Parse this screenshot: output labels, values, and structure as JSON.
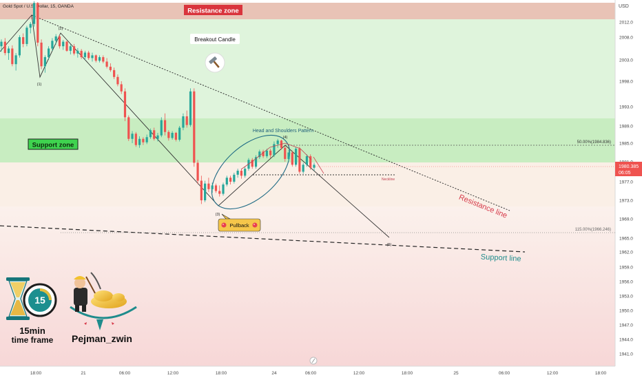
{
  "header": {
    "symbol": "Gold Spot / U.S. Dollar, 15, OANDA",
    "currency": "USD"
  },
  "colors": {
    "up": "#26a69a",
    "down": "#ef5350",
    "resistance_fill": "#e9c3b6",
    "green_fill": "#dcf3d9",
    "support_fill": "#c8edc1",
    "low_fill": "#f9e6e6",
    "teal": "#1f8c8c",
    "resistance_text": "#d63a4a"
  },
  "chart_data": {
    "type": "candlestick",
    "title": "Gold Spot / U.S. Dollar, 15, OANDA",
    "y_axis_label": "USD",
    "y_ticks": [
      2012.0,
      2008.0,
      2003.0,
      1998.0,
      1993.0,
      1989.0,
      1985.0,
      1981.0,
      1977.0,
      1973.0,
      1969.0,
      1965.0,
      1962.0,
      1959.0,
      1956.0,
      1953.0,
      1950.0,
      1947.0,
      1944.0,
      1941.0
    ],
    "x_ticks": [
      "18:00",
      "21",
      "06:00",
      "12:00",
      "18:00",
      "24",
      "06:00",
      "12:00",
      "18:00",
      "25",
      "06:00",
      "12:00",
      "18:00"
    ],
    "current_price": "1980.385",
    "countdown": "06:05",
    "zones": [
      {
        "label": "Resistance zone",
        "from": 2012.5,
        "to": 2016.0
      },
      {
        "label": "Support zone",
        "from": 1980.8,
        "to": 1990.0
      }
    ],
    "fib_levels": [
      {
        "label": "50.00%(1984.836)",
        "value": 1984.836
      },
      {
        "label": "115.00%(1966.246)",
        "value": 1966.246
      }
    ],
    "neckline": {
      "label": "Neckline",
      "value": 1978.8
    },
    "trendlines": [
      {
        "label": "Resistance line"
      },
      {
        "label": "Support line"
      }
    ],
    "pattern_label": "Head and Shoulders Pattern",
    "wave_points": [
      {
        "label": "(1)",
        "time": "19:30",
        "value": 2000.0
      },
      {
        "label": "(2)",
        "time": "22:45",
        "value": 2008.6
      },
      {
        "label": "(3)",
        "time": "17:45",
        "value": 1972.0
      },
      {
        "label": "(4)",
        "time": "04:30",
        "value": 1985.6
      },
      {
        "label": "(5)",
        "time": "14:00",
        "value": 1964.2
      }
    ],
    "candles": [
      [
        2006.0,
        2007.5,
        2004.8,
        2007.0
      ],
      [
        2007.0,
        2007.8,
        2004.0,
        2004.5
      ],
      [
        2004.5,
        2006.0,
        2003.0,
        2005.5
      ],
      [
        2005.5,
        2006.2,
        2001.5,
        2002.0
      ],
      [
        2002.0,
        2004.5,
        2000.5,
        2004.0
      ],
      [
        2004.0,
        2008.5,
        2003.5,
        2008.0
      ],
      [
        2008.0,
        2009.0,
        2005.8,
        2006.5
      ],
      [
        2006.5,
        2011.0,
        2006.0,
        2010.5
      ],
      [
        2010.5,
        2012.0,
        2009.0,
        2011.5
      ],
      [
        2011.5,
        2014.2,
        2010.8,
        2013.8
      ],
      [
        2013.8,
        2014.0,
        2006.0,
        2006.8
      ],
      [
        2006.8,
        2007.5,
        2000.8,
        2001.5
      ],
      [
        2001.5,
        2004.0,
        2000.0,
        2003.6
      ],
      [
        2003.6,
        2006.0,
        2003.0,
        2005.5
      ],
      [
        2005.5,
        2007.8,
        2005.0,
        2007.2
      ],
      [
        2007.2,
        2008.8,
        2006.4,
        2008.2
      ],
      [
        2008.2,
        2008.6,
        2005.5,
        2006.0
      ],
      [
        2006.0,
        2007.4,
        2005.2,
        2007.0
      ],
      [
        2007.0,
        2007.2,
        2004.8,
        2005.0
      ],
      [
        2005.0,
        2006.4,
        2004.2,
        2006.0
      ],
      [
        2006.0,
        2006.5,
        2004.0,
        2004.4
      ],
      [
        2004.4,
        2005.6,
        2003.5,
        2005.0
      ],
      [
        2005.0,
        2005.4,
        2003.2,
        2003.6
      ],
      [
        2003.6,
        2005.0,
        2003.0,
        2004.6
      ],
      [
        2004.6,
        2005.0,
        2003.0,
        2003.4
      ],
      [
        2003.4,
        2004.6,
        2002.6,
        2004.0
      ],
      [
        2004.0,
        2004.2,
        2002.4,
        2002.8
      ],
      [
        2002.8,
        2004.0,
        2002.4,
        2003.6
      ],
      [
        2003.6,
        2004.0,
        2002.2,
        2002.6
      ],
      [
        2002.6,
        2003.4,
        2001.0,
        2001.4
      ],
      [
        2001.4,
        2002.2,
        2000.2,
        2000.6
      ],
      [
        2000.6,
        2001.2,
        1998.5,
        1999.0
      ],
      [
        1999.0,
        1999.6,
        1997.0,
        1997.4
      ],
      [
        1997.4,
        1998.0,
        1995.5,
        1996.0
      ],
      [
        1996.0,
        1996.6,
        1990.0,
        1990.8
      ],
      [
        1990.8,
        1991.2,
        1985.5,
        1986.0
      ],
      [
        1986.0,
        1987.8,
        1985.0,
        1987.2
      ],
      [
        1987.2,
        1987.6,
        1984.2,
        1984.6
      ],
      [
        1984.6,
        1986.6,
        1984.0,
        1986.0
      ],
      [
        1986.0,
        1986.4,
        1984.6,
        1985.2
      ],
      [
        1985.2,
        1987.0,
        1984.8,
        1986.4
      ],
      [
        1986.4,
        1988.4,
        1986.0,
        1988.0
      ],
      [
        1988.0,
        1988.6,
        1985.6,
        1986.0
      ],
      [
        1986.0,
        1987.4,
        1985.4,
        1986.8
      ],
      [
        1986.8,
        1990.8,
        1986.4,
        1990.2
      ],
      [
        1990.2,
        1991.6,
        1986.8,
        1987.6
      ],
      [
        1987.6,
        1988.0,
        1985.6,
        1986.2
      ],
      [
        1986.2,
        1987.8,
        1985.8,
        1987.4
      ],
      [
        1987.4,
        1987.6,
        1985.4,
        1985.8
      ],
      [
        1985.8,
        1989.0,
        1985.4,
        1988.6
      ],
      [
        1988.6,
        1991.6,
        1988.0,
        1991.0
      ],
      [
        1991.0,
        1992.2,
        1988.6,
        1989.2
      ],
      [
        1989.2,
        1996.6,
        1988.8,
        1996.0
      ],
      [
        1996.0,
        1996.6,
        1980.0,
        1980.8
      ],
      [
        1980.8,
        1981.4,
        1976.5,
        1977.2
      ],
      [
        1977.2,
        1978.2,
        1972.2,
        1973.0
      ],
      [
        1973.0,
        1977.2,
        1972.6,
        1976.6
      ],
      [
        1976.6,
        1977.8,
        1974.8,
        1975.4
      ],
      [
        1975.4,
        1976.8,
        1974.6,
        1976.2
      ],
      [
        1976.2,
        1976.6,
        1974.6,
        1975.0
      ],
      [
        1975.0,
        1976.2,
        1973.8,
        1974.4
      ],
      [
        1974.4,
        1976.8,
        1974.0,
        1976.4
      ],
      [
        1976.4,
        1978.2,
        1976.0,
        1977.8
      ],
      [
        1977.8,
        1978.2,
        1976.4,
        1977.0
      ],
      [
        1977.0,
        1978.8,
        1976.6,
        1978.4
      ],
      [
        1978.4,
        1979.6,
        1977.8,
        1979.2
      ],
      [
        1979.2,
        1979.6,
        1977.6,
        1978.2
      ],
      [
        1978.2,
        1980.0,
        1977.8,
        1979.6
      ],
      [
        1979.6,
        1981.8,
        1979.2,
        1981.4
      ],
      [
        1981.4,
        1981.8,
        1979.6,
        1980.0
      ],
      [
        1980.0,
        1982.4,
        1979.6,
        1982.0
      ],
      [
        1982.0,
        1983.6,
        1981.6,
        1983.2
      ],
      [
        1983.2,
        1983.6,
        1981.8,
        1982.2
      ],
      [
        1982.2,
        1983.8,
        1981.8,
        1983.4
      ],
      [
        1983.4,
        1983.8,
        1981.8,
        1982.4
      ],
      [
        1982.4,
        1985.4,
        1982.0,
        1984.8
      ],
      [
        1984.8,
        1986.0,
        1984.0,
        1985.6
      ],
      [
        1985.6,
        1985.8,
        1983.6,
        1984.0
      ],
      [
        1984.0,
        1984.4,
        1981.0,
        1981.6
      ],
      [
        1981.6,
        1983.6,
        1981.2,
        1983.0
      ],
      [
        1983.0,
        1983.4,
        1980.0,
        1980.4
      ],
      [
        1980.4,
        1984.2,
        1980.0,
        1983.8
      ],
      [
        1983.8,
        1984.2,
        1978.6,
        1979.0
      ],
      [
        1979.0,
        1980.8,
        1978.6,
        1980.4
      ],
      [
        1980.4,
        1982.6,
        1980.0,
        1982.2
      ],
      [
        1982.2,
        1982.6,
        1979.4,
        1979.8
      ],
      [
        1979.8,
        1980.8,
        1979.2,
        1980.385
      ]
    ]
  },
  "annotations": {
    "breakout_candle": "Breakout Candle",
    "pullback": "Pullback",
    "logo_timeframe_line1": "15min",
    "logo_timeframe_line2": "time frame",
    "logo_clock_number": "15",
    "author": "Pejman_zwin"
  }
}
